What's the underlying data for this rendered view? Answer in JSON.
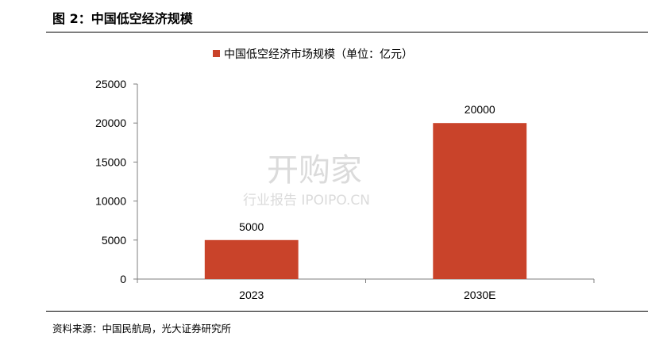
{
  "figure": {
    "title": "图 2：中国低空经济规模",
    "source": "资料来源：中国民航局，光大证券研究所"
  },
  "watermark": {
    "main": "开购家",
    "sub": "行业报告 IPOIPO.CN"
  },
  "chart_data": {
    "type": "bar",
    "categories": [
      "2023",
      "2030E"
    ],
    "series": [
      {
        "name": "中国低空经济市场规模（单位：亿元）",
        "values": [
          5000,
          20000
        ],
        "color": "#c9432a"
      }
    ],
    "data_labels": [
      "5000",
      "20000"
    ],
    "ylim": [
      0,
      25000
    ],
    "yticks": [
      0,
      5000,
      10000,
      15000,
      20000,
      25000
    ],
    "legend_position": "top-center",
    "grid": false
  }
}
